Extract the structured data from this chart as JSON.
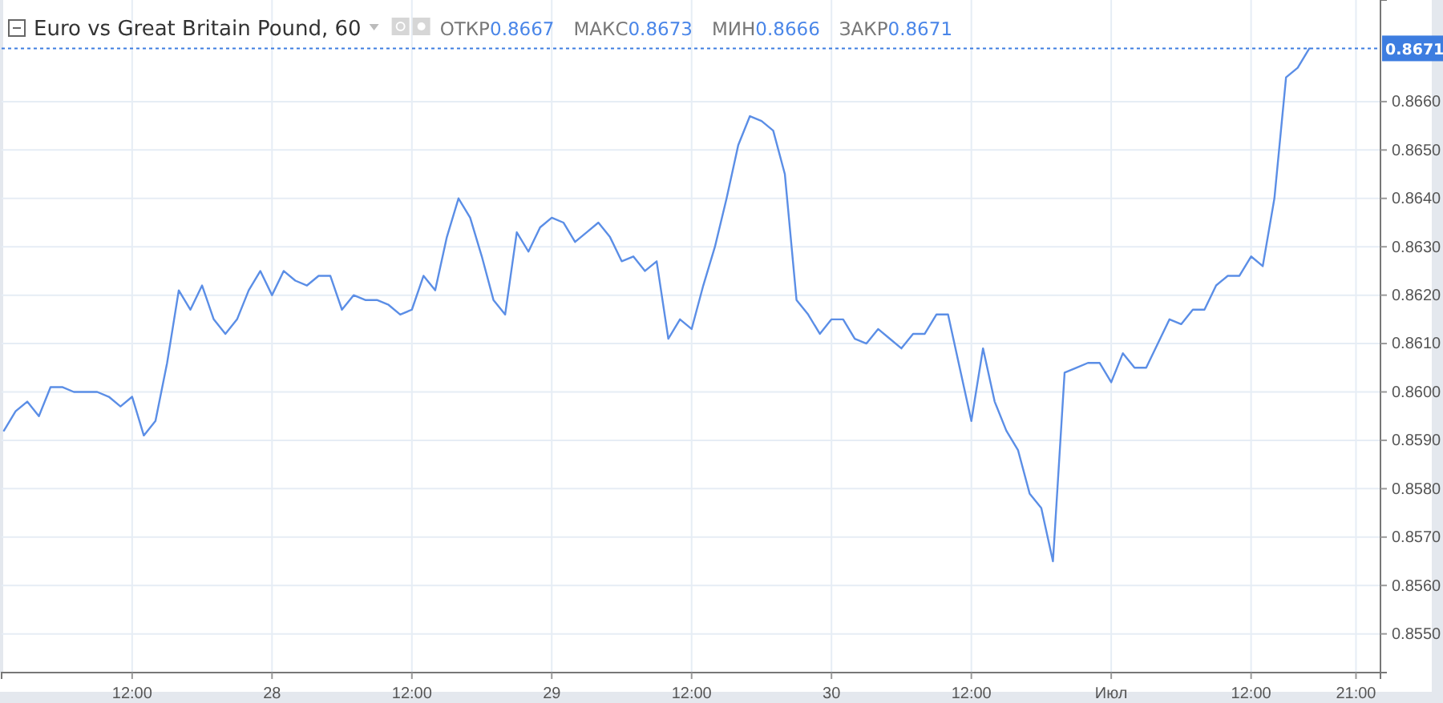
{
  "chart_data": {
    "type": "line",
    "title": "Euro vs Great Britain Pound, 60",
    "annotations": [
      "ОТКР0.8667",
      "МАКС0.8673",
      "МИН0.8666",
      "ЗАКР0.8671"
    ],
    "categories": [
      null,
      null,
      null,
      null,
      null,
      null,
      null,
      null,
      null,
      null,
      null,
      "12:00",
      null,
      null,
      null,
      null,
      null,
      null,
      null,
      null,
      null,
      null,
      null,
      "28",
      null,
      null,
      null,
      null,
      null,
      null,
      null,
      null,
      null,
      null,
      null,
      "12:00",
      null,
      null,
      null,
      null,
      null,
      null,
      null,
      null,
      null,
      null,
      null,
      "29",
      null,
      null,
      null,
      null,
      null,
      null,
      null,
      null,
      null,
      null,
      null,
      "12:00",
      null,
      null,
      null,
      null,
      null,
      null,
      null,
      null,
      null,
      null,
      null,
      "30",
      null,
      null,
      null,
      null,
      null,
      null,
      null,
      null,
      null,
      null,
      null,
      "12:00",
      null,
      null,
      null,
      null,
      null,
      null,
      null,
      null,
      null,
      null,
      null,
      "Июл",
      null,
      null,
      null,
      null,
      null,
      null,
      null,
      null,
      null,
      null,
      null,
      "12:00",
      null,
      null,
      null,
      null,
      null,
      null,
      null,
      null,
      "21:00",
      null
    ],
    "series": [
      {
        "color": "#5b8ee6",
        "values": [
          0.8592,
          0.8596,
          0.8598,
          0.8595,
          0.8601,
          0.8601,
          0.86,
          0.86,
          0.86,
          0.8599,
          0.8597,
          0.8599,
          0.8591,
          0.8594,
          0.8606,
          0.8621,
          0.8617,
          0.8622,
          0.8615,
          0.8612,
          0.8615,
          0.8621,
          0.8625,
          0.862,
          0.8625,
          0.8623,
          0.8622,
          0.8624,
          0.8624,
          0.8617,
          0.862,
          0.8619,
          0.8619,
          0.8618,
          0.8616,
          0.8617,
          0.8624,
          0.8621,
          0.8632,
          0.864,
          0.8636,
          0.8628,
          0.8619,
          0.8616,
          0.8633,
          0.8629,
          0.8634,
          0.8636,
          0.8635,
          0.8631,
          0.8633,
          0.8635,
          0.8632,
          0.8627,
          0.8628,
          0.8625,
          0.8627,
          0.8611,
          0.8615,
          0.8613,
          0.8622,
          0.863,
          0.864,
          0.8651,
          0.8657,
          0.8656,
          0.8654,
          0.8645,
          0.8619,
          0.8616,
          0.8612,
          0.8615,
          0.8615,
          0.8611,
          0.861,
          0.8613,
          0.8611,
          0.8609,
          0.8612,
          0.8612,
          0.8616,
          0.8616,
          0.8605,
          0.8594,
          0.8609,
          0.8598,
          0.8592,
          0.8588,
          0.8579,
          0.8576,
          0.8565,
          0.8604,
          0.8605,
          0.8606,
          0.8606,
          0.8602,
          0.8608,
          0.8605,
          0.8605,
          0.861,
          0.8615,
          0.8614,
          0.8617,
          0.8617,
          0.8622,
          0.8624,
          0.8624,
          0.8628,
          0.8626,
          0.864,
          0.8665,
          0.8667,
          0.8671,
          null,
          null,
          null,
          null,
          null
        ]
      }
    ],
    "ylim": [
      0.8542,
      0.8681
    ],
    "yticks": [
      {
        "value": 0.855,
        "label": "0.8550"
      },
      {
        "value": 0.856,
        "label": "0.8560"
      },
      {
        "value": 0.857,
        "label": "0.8570"
      },
      {
        "value": 0.858,
        "label": "0.8580"
      },
      {
        "value": 0.859,
        "label": "0.8590"
      },
      {
        "value": 0.86,
        "label": "0.8600"
      },
      {
        "value": 0.861,
        "label": "0.8610"
      },
      {
        "value": 0.862,
        "label": "0.8620"
      },
      {
        "value": 0.863,
        "label": "0.8630"
      },
      {
        "value": 0.864,
        "label": "0.8640"
      },
      {
        "value": 0.865,
        "label": "0.8650"
      },
      {
        "value": 0.866,
        "label": "0.8660"
      }
    ],
    "ref_lines": [
      {
        "axis": "y",
        "value": 0.8671,
        "label": "0.8671",
        "color": "#3d7de0",
        "line_style": "dotted"
      }
    ],
    "grid": true,
    "marker": "none",
    "line_style": "solid"
  }
}
